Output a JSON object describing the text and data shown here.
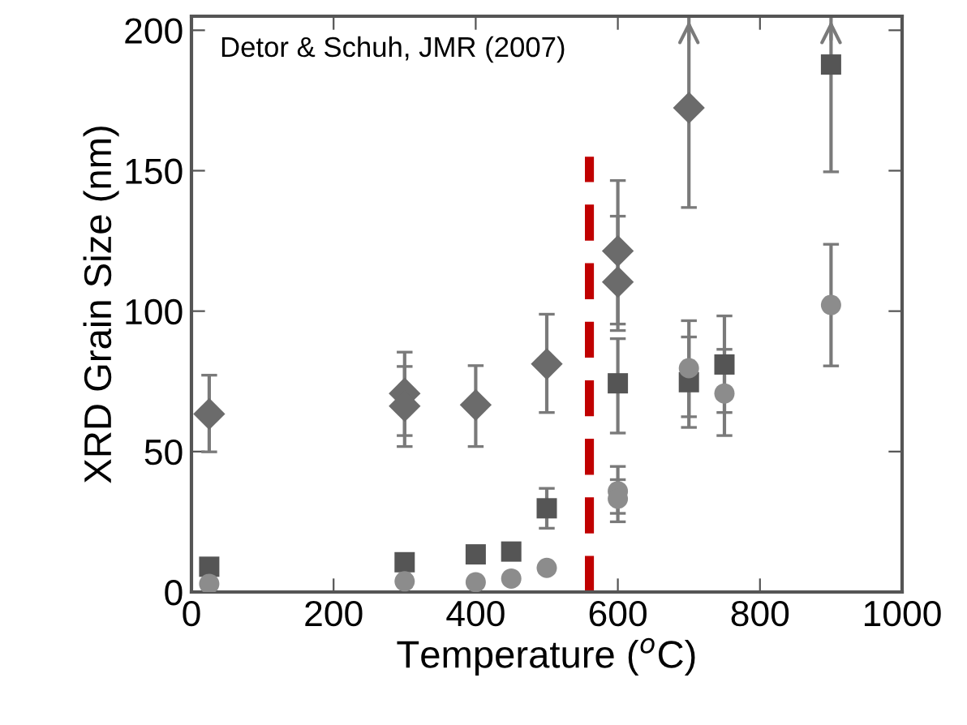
{
  "chart_data": {
    "type": "scatter",
    "xlabel": "Temperature ($^{o}$C)",
    "ylabel": "XRD Grain Size (nm)",
    "xlim": [
      0,
      1000
    ],
    "ylim": [
      0,
      205
    ],
    "xticks": [
      0,
      200,
      400,
      600,
      800,
      1000
    ],
    "yticks": [
      0,
      50,
      100,
      150,
      200
    ],
    "grid": false,
    "legend": false,
    "annotations": [
      "Detor & Schuh, JMR (2007)"
    ],
    "series": [
      {
        "marker": "diamond",
        "color": "#6b6b6b",
        "x": [
          25,
          300,
          300,
          400,
          500,
          600,
          600,
          700
        ],
        "values": [
          63.4,
          70.7,
          66.2,
          66.6,
          81.2,
          121.4,
          110.4,
          172.4
        ],
        "errors": [
          [
            49.9,
            77.2
          ],
          [
            55.7,
            85.4
          ],
          [
            51.8,
            80.3
          ],
          [
            51.8,
            80.6
          ],
          [
            63.9,
            98.9
          ],
          [
            95.4,
            146.5
          ],
          [
            93.1,
            133.8
          ],
          [
            136.9,
            205
          ]
        ]
      },
      {
        "marker": "square",
        "color": "#555555",
        "x": [
          25,
          300,
          400,
          450,
          500,
          600,
          700,
          750,
          900
        ],
        "values": [
          9.0,
          10.6,
          13.4,
          14.4,
          29.8,
          74.3,
          74.7,
          81.0,
          187.8
        ],
        "errors": [
          null,
          null,
          null,
          null,
          [
            22.7,
            36.9
          ],
          [
            56.6,
            90.2
          ],
          [
            62.4,
            90.8
          ],
          [
            63.9,
            98.3
          ],
          [
            149.6,
            205
          ]
        ]
      },
      {
        "marker": "circle",
        "color": "#8c8c8c",
        "x": [
          25,
          300,
          400,
          450,
          500,
          600,
          600,
          700,
          750,
          900
        ],
        "values": [
          2.9,
          3.8,
          3.5,
          4.8,
          8.6,
          35.9,
          33.2,
          79.7,
          70.7,
          102.2
        ],
        "errors": [
          null,
          null,
          null,
          null,
          null,
          [
            28,
            44.7
          ],
          [
            25,
            40
          ],
          [
            58.6,
            96.6
          ],
          [
            55.7,
            86.4
          ],
          [
            80.5,
            123.8
          ]
        ]
      },
      {
        "type": "line",
        "marker": "none",
        "line_style": "dashed",
        "color": "#c00000",
        "x": [
          560,
          560
        ],
        "values": [
          0,
          155
        ]
      }
    ]
  }
}
